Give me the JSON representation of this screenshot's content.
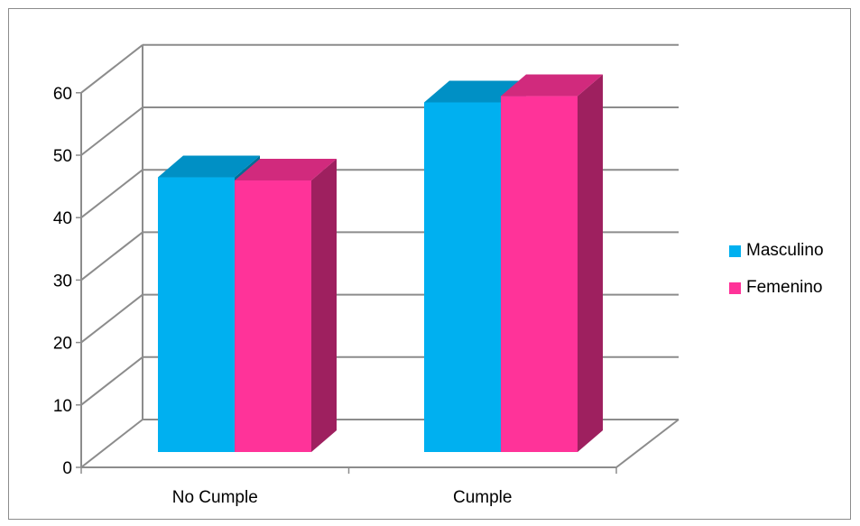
{
  "chart_data": {
    "type": "bar",
    "categories": [
      "No Cumple",
      "Cumple"
    ],
    "series": [
      {
        "name": "Masculino",
        "values": [
          44,
          56
        ],
        "color": "#00B0F0"
      },
      {
        "name": "Femenino",
        "values": [
          43.5,
          57
        ],
        "color": "#FF3399"
      }
    ],
    "ylim": [
      0,
      60
    ],
    "yticks": [
      "0",
      "10",
      "20",
      "30",
      "40",
      "50",
      "60"
    ],
    "grid": true,
    "legend_position": "right",
    "three_d": true
  }
}
